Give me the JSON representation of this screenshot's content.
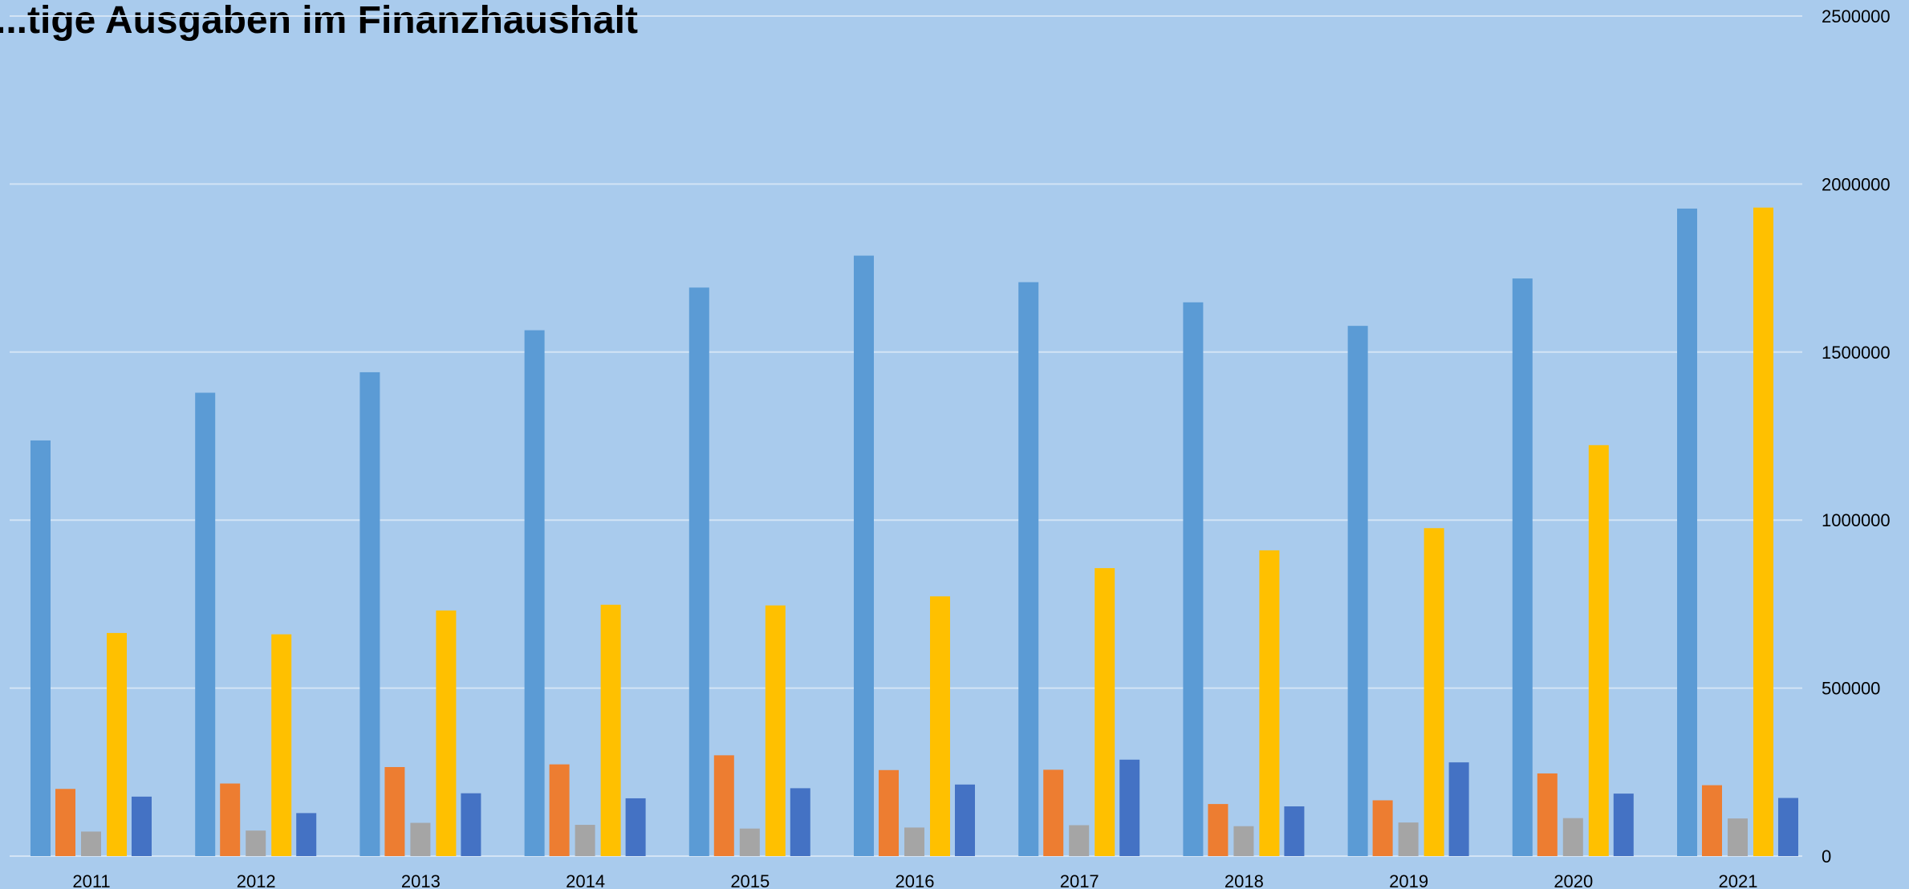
{
  "chart_data": {
    "type": "bar",
    "title": "...tige Ausgaben im Finanzhaushalt",
    "categories": [
      "2011",
      "2012",
      "2013",
      "2014",
      "2015",
      "2016",
      "2017",
      "2018",
      "2019",
      "2020",
      "2021"
    ],
    "series": [
      {
        "color": "#5b9bd5",
        "values": [
          1237000,
          1379000,
          1440000,
          1565000,
          1692000,
          1787000,
          1708000,
          1648000,
          1578000,
          1719000,
          1927000
        ]
      },
      {
        "color": "#ed7d31",
        "values": [
          200000,
          216000,
          265000,
          273000,
          300000,
          256000,
          257000,
          155000,
          166000,
          246000,
          211000
        ]
      },
      {
        "color": "#a5a5a5",
        "values": [
          73000,
          76000,
          99000,
          93000,
          82000,
          85000,
          92000,
          89000,
          100000,
          113000,
          112000
        ]
      },
      {
        "color": "#ffc000",
        "values": [
          664000,
          660000,
          731000,
          748000,
          746000,
          773000,
          857000,
          910000,
          976000,
          1223000,
          1930000
        ]
      },
      {
        "color": "#4472c4",
        "values": [
          177000,
          128000,
          187000,
          172000,
          202000,
          213000,
          287000,
          148000,
          279000,
          186000,
          173000
        ]
      }
    ],
    "y_ticks": [
      "0",
      "500000",
      "1000000",
      "1500000",
      "2000000",
      "2500000"
    ],
    "ylim": [
      0,
      2500000
    ],
    "y_axis_side": "right",
    "grid": true,
    "gridline_color": "#d3e4f5",
    "legend": "none"
  }
}
